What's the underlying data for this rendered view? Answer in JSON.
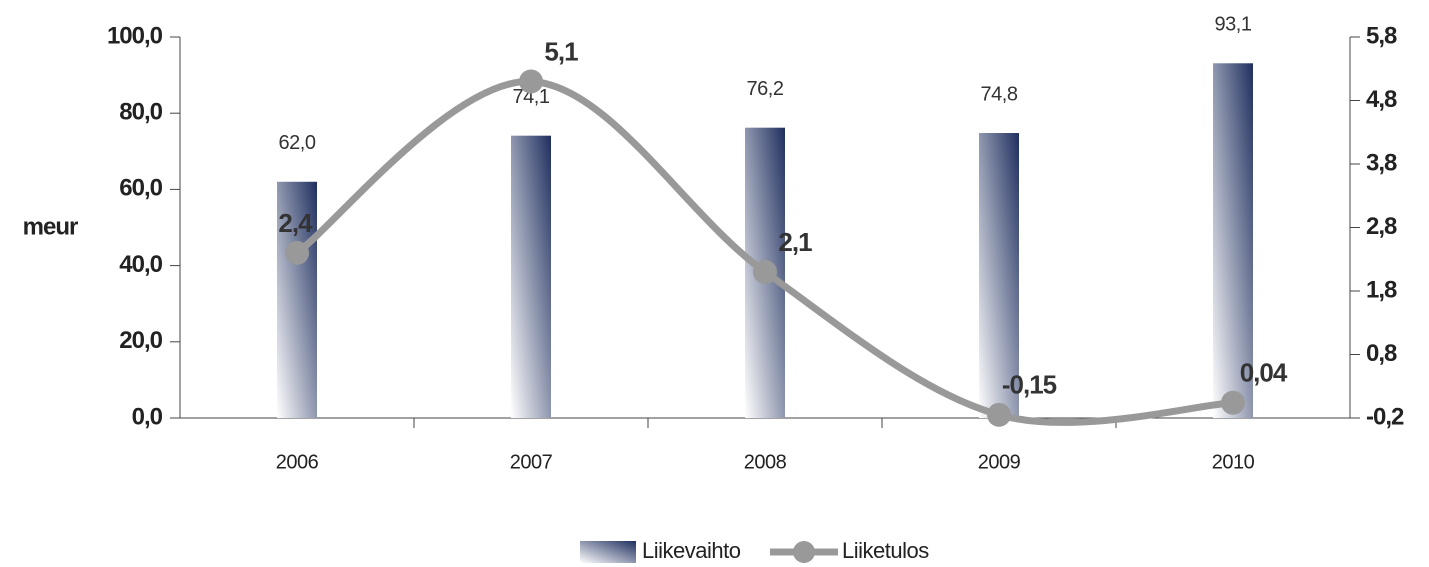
{
  "chart_data": {
    "type": "bar_line",
    "y_label": "meur",
    "categories": [
      "2006",
      "2007",
      "2008",
      "2009",
      "2010"
    ],
    "series": [
      {
        "name": "Liikevaihto",
        "color": "#1f2f5f",
        "values": [
          62.0,
          74.1,
          76.2,
          74.8,
          93.1
        ],
        "value_labels": [
          "62,0",
          "74,1",
          "76,2",
          "74,8",
          "93,1"
        ]
      },
      {
        "name": "Liiketulos",
        "color": "#999999",
        "axis": "y2",
        "values": [
          2.4,
          5.1,
          2.1,
          -0.15,
          0.04
        ],
        "value_labels": [
          "2,4",
          "5,1",
          "2,1",
          "-0,15",
          "0,04"
        ]
      }
    ],
    "ylim": [
      0,
      100
    ],
    "yticks": [
      {
        "value": 0,
        "label": "0,0"
      },
      {
        "value": 20,
        "label": "20,0"
      },
      {
        "value": 40,
        "label": "40,0"
      },
      {
        "value": 60,
        "label": "60,0"
      },
      {
        "value": 80,
        "label": "80,0"
      },
      {
        "value": 100,
        "label": "100,0"
      }
    ],
    "y2lim": [
      -0.2,
      5.8
    ],
    "y2ticks": [
      {
        "value": -0.2,
        "label": "-0,2"
      },
      {
        "value": 0.8,
        "label": "0,8"
      },
      {
        "value": 1.8,
        "label": "1,8"
      },
      {
        "value": 2.8,
        "label": "2,8"
      },
      {
        "value": 3.8,
        "label": "3,8"
      },
      {
        "value": 4.8,
        "label": "4,8"
      },
      {
        "value": 5.8,
        "label": "5,8"
      }
    ],
    "legend": "bottom"
  }
}
